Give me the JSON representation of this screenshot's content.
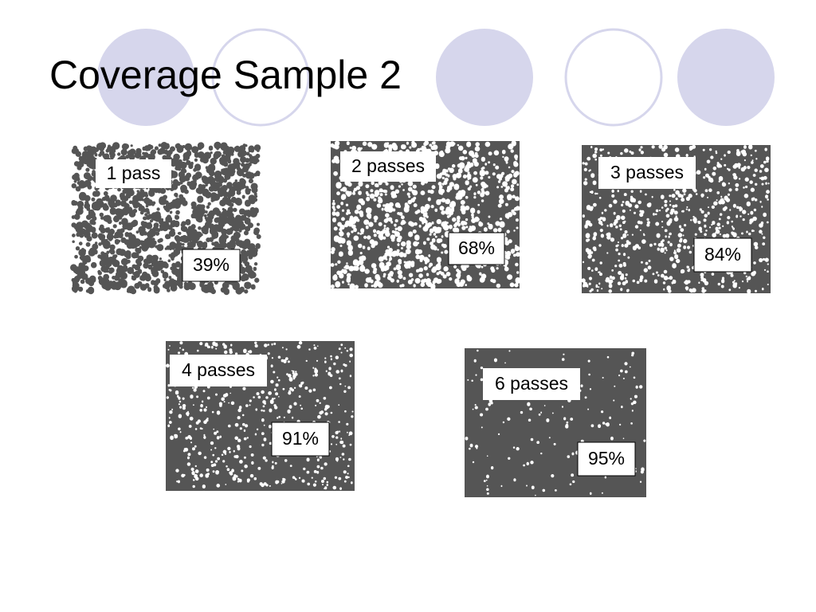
{
  "title": "Coverage Sample 2",
  "samples": [
    {
      "label": "1 pass",
      "coverage": "39%"
    },
    {
      "label": "2 passes",
      "coverage": "68%"
    },
    {
      "label": "3 passes",
      "coverage": "84%"
    },
    {
      "label": "4 passes",
      "coverage": "91%"
    },
    {
      "label": "6 passes",
      "coverage": "95%"
    }
  ]
}
